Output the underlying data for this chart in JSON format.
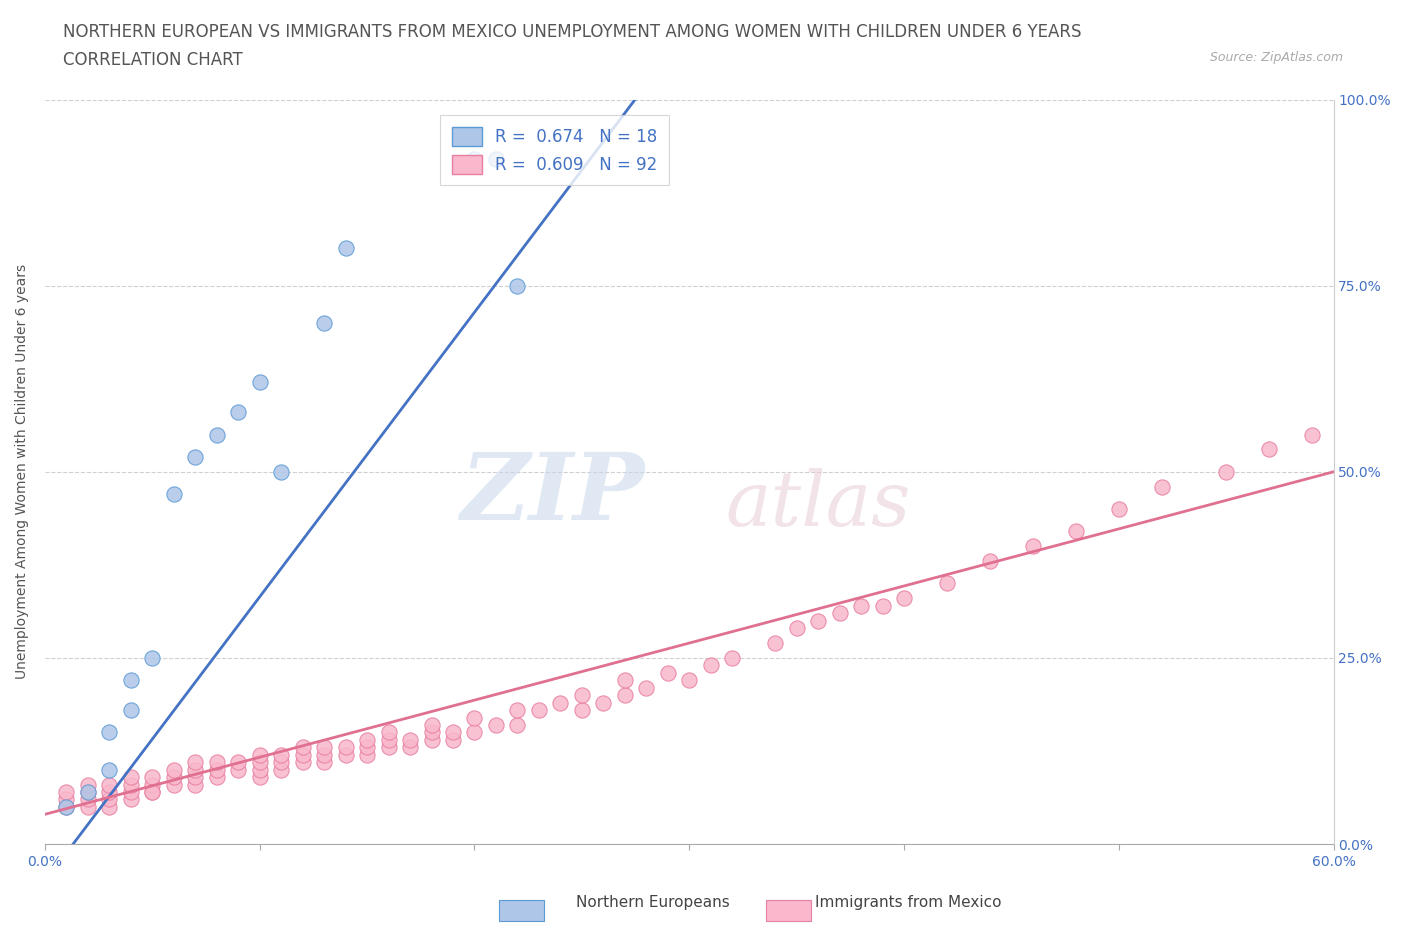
{
  "title_line1": "NORTHERN EUROPEAN VS IMMIGRANTS FROM MEXICO UNEMPLOYMENT AMONG WOMEN WITH CHILDREN UNDER 6 YEARS",
  "title_line2": "CORRELATION CHART",
  "source": "Source: ZipAtlas.com",
  "ylabel": "Unemployment Among Women with Children Under 6 years",
  "xlim": [
    0.0,
    0.6
  ],
  "ylim": [
    0.0,
    1.0
  ],
  "xticks": [
    0.0,
    0.1,
    0.2,
    0.3,
    0.4,
    0.5,
    0.6
  ],
  "xticklabels": [
    "0.0%",
    "",
    "",
    "",
    "",
    "",
    "60.0%"
  ],
  "yticks": [
    0.0,
    0.25,
    0.5,
    0.75,
    1.0
  ],
  "yticklabels": [
    "0.0%",
    "25.0%",
    "50.0%",
    "75.0%",
    "100.0%"
  ],
  "blue_R": 0.674,
  "blue_N": 18,
  "pink_R": 0.609,
  "pink_N": 92,
  "blue_fill_color": "#aec6e8",
  "pink_fill_color": "#f9b8cb",
  "blue_edge_color": "#5b9bd5",
  "pink_edge_color": "#e87fa0",
  "blue_line_color": "#4472c4",
  "pink_line_color": "#e07090",
  "blue_scatter_x": [
    0.01,
    0.02,
    0.03,
    0.03,
    0.04,
    0.04,
    0.05,
    0.06,
    0.07,
    0.08,
    0.09,
    0.1,
    0.11,
    0.13,
    0.14,
    0.2,
    0.21,
    0.22
  ],
  "blue_scatter_y": [
    0.05,
    0.07,
    0.1,
    0.15,
    0.18,
    0.22,
    0.25,
    0.47,
    0.52,
    0.55,
    0.58,
    0.62,
    0.5,
    0.7,
    0.8,
    0.92,
    0.92,
    0.75
  ],
  "pink_scatter_x": [
    0.01,
    0.01,
    0.01,
    0.02,
    0.02,
    0.02,
    0.02,
    0.03,
    0.03,
    0.03,
    0.03,
    0.04,
    0.04,
    0.04,
    0.04,
    0.05,
    0.05,
    0.05,
    0.05,
    0.06,
    0.06,
    0.06,
    0.07,
    0.07,
    0.07,
    0.07,
    0.08,
    0.08,
    0.08,
    0.09,
    0.09,
    0.1,
    0.1,
    0.1,
    0.1,
    0.11,
    0.11,
    0.11,
    0.12,
    0.12,
    0.12,
    0.13,
    0.13,
    0.13,
    0.14,
    0.14,
    0.15,
    0.15,
    0.15,
    0.16,
    0.16,
    0.16,
    0.17,
    0.17,
    0.18,
    0.18,
    0.18,
    0.19,
    0.19,
    0.2,
    0.2,
    0.21,
    0.22,
    0.22,
    0.23,
    0.24,
    0.25,
    0.25,
    0.26,
    0.27,
    0.27,
    0.28,
    0.29,
    0.3,
    0.31,
    0.32,
    0.34,
    0.35,
    0.36,
    0.37,
    0.38,
    0.39,
    0.4,
    0.42,
    0.44,
    0.46,
    0.48,
    0.5,
    0.52,
    0.55,
    0.57,
    0.59
  ],
  "pink_scatter_y": [
    0.05,
    0.06,
    0.07,
    0.05,
    0.06,
    0.07,
    0.08,
    0.05,
    0.06,
    0.07,
    0.08,
    0.06,
    0.07,
    0.08,
    0.09,
    0.07,
    0.08,
    0.09,
    0.07,
    0.08,
    0.09,
    0.1,
    0.08,
    0.09,
    0.1,
    0.11,
    0.09,
    0.1,
    0.11,
    0.1,
    0.11,
    0.09,
    0.1,
    0.11,
    0.12,
    0.1,
    0.11,
    0.12,
    0.11,
    0.12,
    0.13,
    0.11,
    0.12,
    0.13,
    0.12,
    0.13,
    0.12,
    0.13,
    0.14,
    0.13,
    0.14,
    0.15,
    0.13,
    0.14,
    0.14,
    0.15,
    0.16,
    0.14,
    0.15,
    0.15,
    0.17,
    0.16,
    0.16,
    0.18,
    0.18,
    0.19,
    0.18,
    0.2,
    0.19,
    0.2,
    0.22,
    0.21,
    0.23,
    0.22,
    0.24,
    0.25,
    0.27,
    0.29,
    0.3,
    0.31,
    0.32,
    0.32,
    0.33,
    0.35,
    0.38,
    0.4,
    0.42,
    0.45,
    0.48,
    0.5,
    0.53,
    0.55
  ],
  "grid_color": "#d0d0d0",
  "background_color": "#ffffff",
  "title_fontsize": 12,
  "axis_label_fontsize": 10,
  "tick_fontsize": 10,
  "legend_fontsize": 12
}
